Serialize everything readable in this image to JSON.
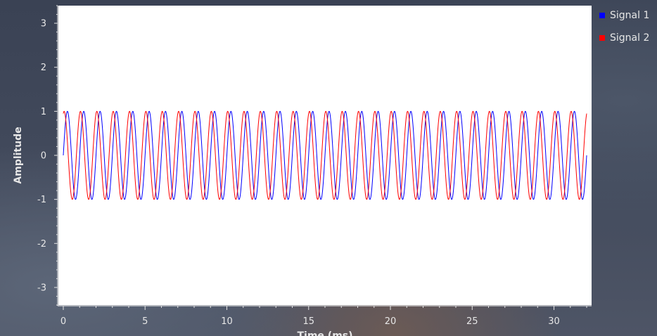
{
  "chart_data": {
    "type": "line",
    "title": "",
    "xlabel": "Time (ms)",
    "ylabel": "Amplitude",
    "xlim": [
      -0.3,
      32.3
    ],
    "ylim": [
      -3.4,
      3.4
    ],
    "x_ticks": [
      0,
      5,
      10,
      15,
      20,
      25,
      30
    ],
    "y_ticks": [
      3,
      2,
      1,
      0,
      -1,
      -2,
      -3
    ],
    "x_range": [
      0,
      32
    ],
    "grid": false,
    "legend_position": "top-right",
    "series": [
      {
        "name": "Signal 1",
        "color": "#0000ff",
        "function": "sine",
        "amplitude": 1,
        "frequency_khz": 1,
        "phase_rad": 0
      },
      {
        "name": "Signal 2",
        "color": "#ff0000",
        "function": "sine",
        "amplitude": 1,
        "frequency_khz": 1,
        "phase_rad": 1.25
      }
    ]
  },
  "colors": {
    "plot_background": "#ffffff",
    "axis_color": "#e6e6e6"
  }
}
